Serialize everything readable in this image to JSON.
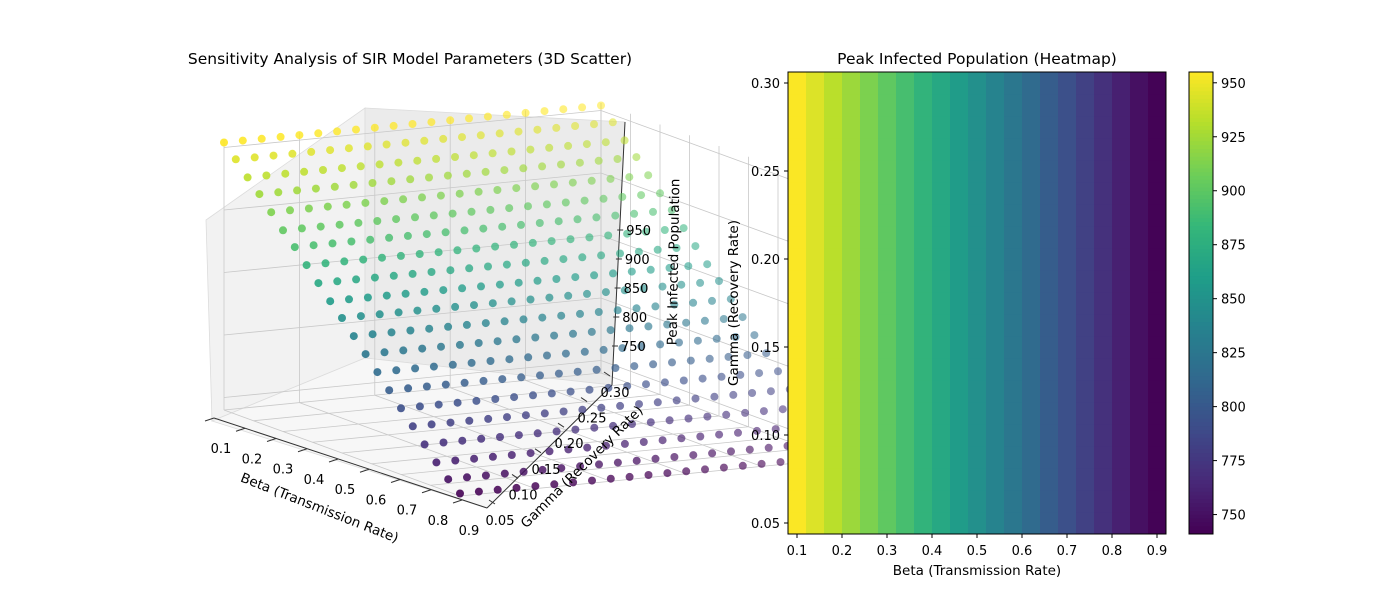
{
  "chart_data": [
    {
      "type": "scatter",
      "projection": "3d",
      "title": "Sensitivity Analysis of SIR Model Parameters (3D Scatter)",
      "xlabel": "Beta (Transmission Rate)",
      "ylabel": "Gamma (Recovery Rate)",
      "zlabel": "Peak Infected Population",
      "x_ticks": [
        "0.1",
        "0.2",
        "0.3",
        "0.4",
        "0.5",
        "0.6",
        "0.7",
        "0.8",
        "0.9"
      ],
      "y_ticks": [
        "0.05",
        "0.10",
        "0.15",
        "0.20",
        "0.25",
        "0.30"
      ],
      "z_ticks": [
        "750",
        "800",
        "850",
        "900",
        "950"
      ],
      "xlim": [
        0.1,
        0.9
      ],
      "ylim": [
        0.05,
        0.3
      ],
      "zlim": [
        740,
        956
      ],
      "colormap": "viridis",
      "grid": true,
      "beta_values": [
        0.1,
        0.14,
        0.18,
        0.22,
        0.26,
        0.3,
        0.34,
        0.38,
        0.42,
        0.46,
        0.5,
        0.54,
        0.58,
        0.62,
        0.66,
        0.7,
        0.74,
        0.78,
        0.82,
        0.86,
        0.9
      ],
      "gamma_values": [
        0.05,
        0.0625,
        0.075,
        0.0875,
        0.1,
        0.1125,
        0.125,
        0.1375,
        0.15,
        0.1625,
        0.175,
        0.1875,
        0.2,
        0.2125,
        0.225,
        0.2375,
        0.25,
        0.2625,
        0.275,
        0.2875,
        0.3
      ],
      "peak_infected_by_beta": [
        954,
        944,
        933,
        923,
        912,
        901,
        891,
        880,
        869,
        858,
        848,
        837,
        826,
        815,
        804,
        793,
        782,
        771,
        760,
        750,
        742
      ]
    },
    {
      "type": "heatmap",
      "title": "Peak Infected Population (Heatmap)",
      "xlabel": "Beta (Transmission Rate)",
      "ylabel": "Gamma (Recovery Rate)",
      "x_ticks": [
        "0.1",
        "0.2",
        "0.3",
        "0.4",
        "0.5",
        "0.6",
        "0.7",
        "0.8",
        "0.9"
      ],
      "y_ticks": [
        "0.05",
        "0.10",
        "0.15",
        "0.20",
        "0.25",
        "0.30"
      ],
      "xlim": [
        0.08,
        0.92
      ],
      "ylim": [
        0.04375,
        0.30625
      ],
      "colormap": "viridis",
      "colorbar_ticks": [
        "750",
        "775",
        "800",
        "825",
        "850",
        "875",
        "900",
        "925",
        "950"
      ],
      "colorbar_range": [
        741,
        955
      ],
      "beta_values": [
        0.1,
        0.14,
        0.18,
        0.22,
        0.26,
        0.3,
        0.34,
        0.38,
        0.42,
        0.46,
        0.5,
        0.54,
        0.58,
        0.62,
        0.66,
        0.7,
        0.74,
        0.78,
        0.82,
        0.86,
        0.9
      ],
      "gamma_values": [
        0.05,
        0.0625,
        0.075,
        0.0875,
        0.1,
        0.1125,
        0.125,
        0.1375,
        0.15,
        0.1625,
        0.175,
        0.1875,
        0.2,
        0.2125,
        0.225,
        0.2375,
        0.25,
        0.2625,
        0.275,
        0.2875,
        0.3
      ],
      "peak_infected_by_beta": [
        954,
        944,
        933,
        923,
        912,
        901,
        891,
        880,
        869,
        858,
        848,
        837,
        826,
        815,
        804,
        793,
        782,
        771,
        760,
        750,
        742
      ]
    }
  ]
}
